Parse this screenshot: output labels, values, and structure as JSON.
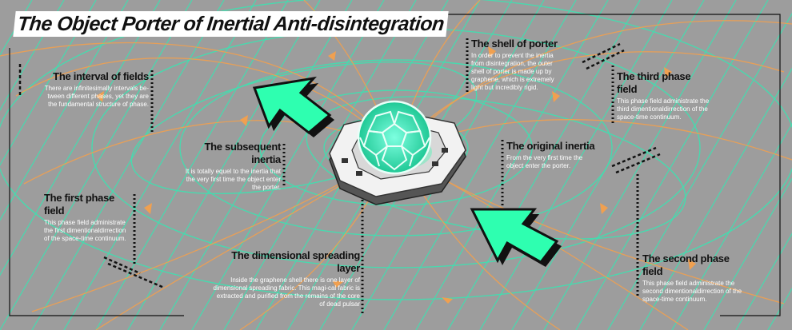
{
  "title": "The Object Porter of Inertial Anti-disintegration",
  "labels": {
    "interval": {
      "heading": "The interval of fields",
      "body": "There are infinitesimally intervals be-tween different phases, yet they are the fundamental structure of phase."
    },
    "subsequent": {
      "heading": "The subsequent inertia",
      "body": "It is totally equel to the inertia that the very first time the object enter the porter."
    },
    "first_phase": {
      "heading": "The first phase field",
      "body": "This phase field administrate the first dimentionaldirrection of the space-time continuum."
    },
    "spreading": {
      "heading": "The dimensional spreading layer",
      "body": "Inside the graphene shell there is one layer of dimensional spreading fabric. This magi-cal fabric is extracted and purified from the remains of the core of dead pulsar"
    },
    "shell": {
      "heading": "The shell of porter",
      "body": "In order to prevent the inertia from disintegration, the outer shell of porter is made up by graphene, which is extremely light but incredibly rigid."
    },
    "third_phase": {
      "heading": "The third phase field",
      "body": "This phase field administrate the third dimentionaldirrection of the space-time continuum."
    },
    "original": {
      "heading": "The original inertia",
      "body": "From the very first time the object enter the porter."
    },
    "second_phase": {
      "heading": "The second phase field",
      "body": "This phase field administrate the second dimentionaldirrection of the space-time continuum."
    }
  },
  "colors": {
    "background": "#9d9d9d",
    "field_lines": "#3fe0b0",
    "orange_lines": "#f0a050",
    "arrow_fill": "#2effb0",
    "sphere": "#3ff0c0",
    "device": "#f2f2f2"
  }
}
